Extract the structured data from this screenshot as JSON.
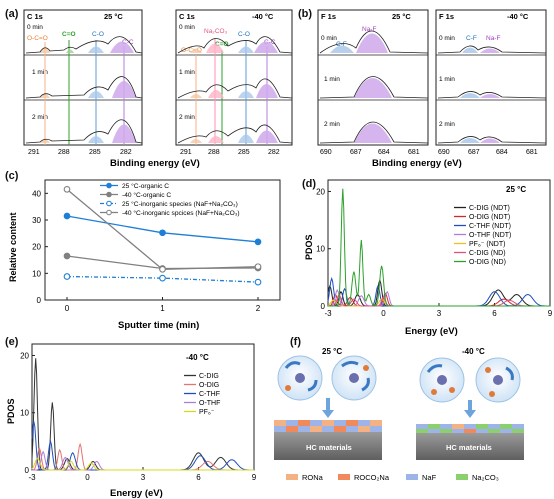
{
  "panel_labels": {
    "a": "(a)",
    "b": "(b)",
    "c": "(c)",
    "d": "(d)",
    "e": "(e)",
    "f": "(f)"
  },
  "panel_a": {
    "left": {
      "element": "C 1s",
      "temp": "25 °C"
    },
    "right": {
      "element": "C 1s",
      "temp": "-40 °C"
    },
    "rows": [
      "0 min",
      "1 min",
      "2 min"
    ],
    "peak_labels_left": [
      "O-C=O",
      "C=O",
      "C-O",
      "C-C"
    ],
    "peak_labels_right": [
      "O-C=O",
      "Na₂CO₃",
      "C=O",
      "C-O",
      "C-C"
    ],
    "ticks_left": [
      "291",
      "288",
      "285",
      "282"
    ],
    "ticks_right": [
      "291",
      "288",
      "285",
      "282"
    ],
    "xlabel": "Binding energy (eV)",
    "colors": {
      "ocoo": "#f4b183",
      "co_double": "#2ca02c",
      "co": "#5b9bd5",
      "cc": "#b57edc",
      "na2co3": "#ff8fb0"
    }
  },
  "panel_b": {
    "left": {
      "element": "F 1s",
      "temp": "25 °C",
      "peaks": [
        "C-F",
        "Na-F"
      ]
    },
    "right": {
      "element": "F 1s",
      "temp": "-40 °C",
      "peaks": [
        "C-F",
        "Na-F"
      ]
    },
    "rows": [
      "0 min",
      "1 min",
      "2 min"
    ],
    "ticks_left": [
      "690",
      "687",
      "684",
      "681"
    ],
    "ticks_right": [
      "690",
      "687",
      "684",
      "681"
    ],
    "xlabel": "Binding energy (eV)"
  },
  "chart_data": [
    {
      "panel": "c",
      "type": "line",
      "x": [
        0,
        1,
        2
      ],
      "xlabel": "Sputter time (min)",
      "ylabel": "Relative content",
      "ylim": [
        0,
        45
      ],
      "yticks": [
        0,
        10,
        20,
        30,
        40
      ],
      "series": [
        {
          "name": "25 °C-organic C",
          "values": [
            31.5,
            25.2,
            21.8
          ],
          "color": "#1e7fd6"
        },
        {
          "name": "-40 °C-organic C",
          "values": [
            16.5,
            11.8,
            12.0
          ],
          "color": "#808080"
        },
        {
          "name": "25 °C-inorganic species (NaF+Na₂CO₃)",
          "values": [
            8.8,
            8.2,
            6.7
          ],
          "color": "#1e7fd6"
        },
        {
          "name": "-40 °C-inorganic spcices (NaF+Na₂CO₃)",
          "values": [
            41.5,
            11.5,
            12.5
          ],
          "color": "#808080"
        }
      ]
    },
    {
      "panel": "d",
      "type": "line",
      "temp": "25 °C",
      "xlabel": "Energy (eV)",
      "ylabel": "PDOS",
      "xlim": [
        -3,
        9
      ],
      "ylim": [
        0,
        22
      ],
      "xticks": [
        -3,
        0,
        3,
        6,
        9
      ],
      "yticks": [
        0,
        10,
        20
      ],
      "series": [
        {
          "name": "C-DIG (NDT)",
          "color": "#222222"
        },
        {
          "name": "O-DIG (NDT)",
          "color": "#d62728"
        },
        {
          "name": "C-THF (NDT)",
          "color": "#1f4fbf"
        },
        {
          "name": "O-THF (NDT)",
          "color": "#b07cd8"
        },
        {
          "name": "PF₆⁻ (NDT)",
          "color": "#f0c020"
        },
        {
          "name": "C-DIG (ND)",
          "color": "#e0507a"
        },
        {
          "name": "O-DIG (ND)",
          "color": "#2ca02c"
        }
      ]
    },
    {
      "panel": "e",
      "type": "line",
      "temp": "-40 °C",
      "xlabel": "Energy (eV)",
      "ylabel": "PDOS",
      "xlim": [
        -3,
        9
      ],
      "ylim": [
        0,
        22
      ],
      "xticks": [
        -3,
        0,
        3,
        6,
        9
      ],
      "yticks": [
        0,
        10,
        20
      ],
      "series": [
        {
          "name": "C-DIG",
          "color": "#333333"
        },
        {
          "name": "O-DIG",
          "color": "#e57373"
        },
        {
          "name": "C-THF",
          "color": "#1f4fbf"
        },
        {
          "name": "O-THF",
          "color": "#b07cd8"
        },
        {
          "name": "PF₆⁻",
          "color": "#d8d820"
        }
      ]
    }
  ],
  "panel_f": {
    "left_temp": "25 °C",
    "right_temp": "-40 °C",
    "substrate_label": "HC materials",
    "legend": [
      {
        "label": "RONa",
        "color": "#f4b183"
      },
      {
        "label": "ROCO₂Na",
        "color": "#f08a5d"
      },
      {
        "label": "NaF",
        "color": "#9db4e8"
      },
      {
        "label": "Na₂CO₃",
        "color": "#8ccf6e"
      }
    ]
  }
}
